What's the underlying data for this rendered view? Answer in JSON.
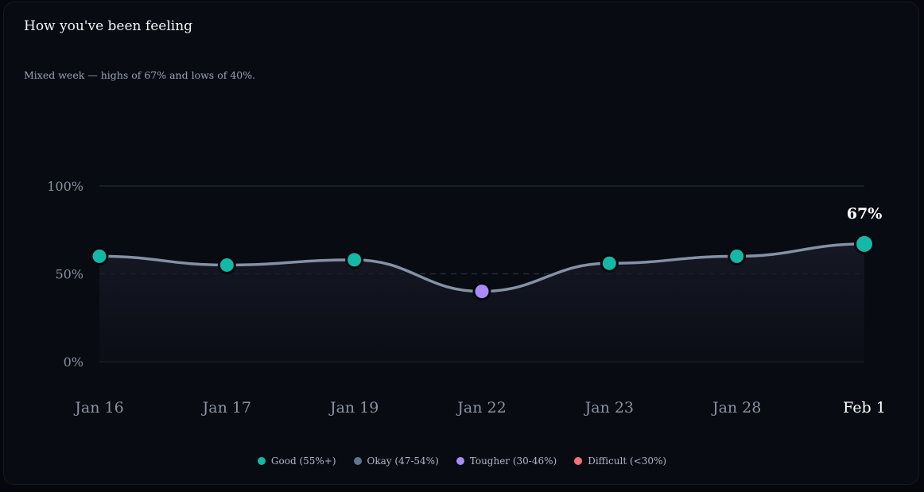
{
  "card": {
    "title": "How you've been feeling",
    "subtitle": "Mixed week — highs of 67% and lows of 40%."
  },
  "chart_data": {
    "type": "line",
    "title": "How you've been feeling",
    "subtitle": "Mixed week — highs of 67% and lows of 40%.",
    "categories": [
      "Jan 16",
      "Jan 17",
      "Jan 19",
      "Jan 22",
      "Jan 23",
      "Jan 28",
      "Feb 1"
    ],
    "values": [
      60,
      55,
      58,
      40,
      56,
      60,
      67
    ],
    "point_levels": [
      "good",
      "good",
      "good",
      "tougher",
      "good",
      "good",
      "good"
    ],
    "highlighted_index": 6,
    "highlight_label": "67%",
    "yticks": [
      "100%",
      "50%",
      "0%"
    ],
    "ylim": [
      0,
      100
    ],
    "reference_line": 50,
    "xlabel": "",
    "ylabel": "",
    "colors": {
      "good": "#14b8a6",
      "okay": "#64748b",
      "tougher": "#a78bfa",
      "difficult": "#f87171",
      "line": "#8591a5",
      "grid": "#1e2430",
      "highlight_text": "#ffffff",
      "tick_text": "#8a92a0"
    },
    "legend": [
      {
        "key": "good",
        "label": "Good (55%+)"
      },
      {
        "key": "okay",
        "label": "Okay (47-54%)"
      },
      {
        "key": "tougher",
        "label": "Tougher (30-46%)"
      },
      {
        "key": "difficult",
        "label": "Difficult (<30%)"
      }
    ]
  }
}
